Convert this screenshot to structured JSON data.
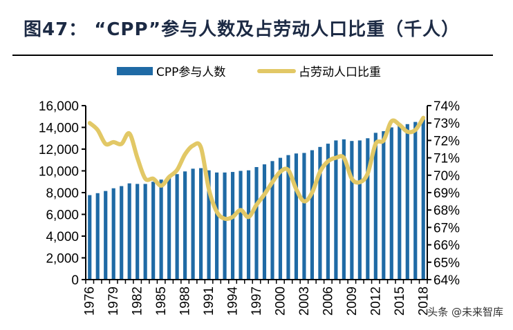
{
  "title": "图47：   “CPP”参与人数及占劳动人口比重（千人）",
  "watermark": "头条 @未来智库",
  "chart_data": {
    "type": "bar+line",
    "title": "图47：   “CPP”参与人数及占劳动人口比重（千人）",
    "legend_position": "top-center",
    "x": [
      1976,
      1977,
      1978,
      1979,
      1980,
      1981,
      1982,
      1983,
      1984,
      1985,
      1986,
      1987,
      1988,
      1989,
      1990,
      1991,
      1992,
      1993,
      1994,
      1995,
      1996,
      1997,
      1998,
      1999,
      2000,
      2001,
      2002,
      2003,
      2004,
      2005,
      2006,
      2007,
      2008,
      2009,
      2010,
      2011,
      2012,
      2013,
      2014,
      2015,
      2016,
      2017,
      2018
    ],
    "x_tick_labels": [
      "1976",
      "1979",
      "1982",
      "1985",
      "1988",
      "1991",
      "1994",
      "1997",
      "2000",
      "2003",
      "2006",
      "2009",
      "2012",
      "2015",
      "2018"
    ],
    "y_left": {
      "range": [
        0,
        16000
      ],
      "ticks": [
        "0",
        "2,000",
        "4,000",
        "6,000",
        "8,000",
        "10,000",
        "12,000",
        "14,000",
        "16,000"
      ]
    },
    "y_right": {
      "range": [
        64,
        74
      ],
      "ticks": [
        "64%",
        "65%",
        "66%",
        "67%",
        "68%",
        "69%",
        "70%",
        "71%",
        "72%",
        "73%",
        "74%"
      ]
    },
    "grid": false,
    "series": [
      {
        "name": "CPP参与人数",
        "type": "bar",
        "axis": "left",
        "color": "#1f6aa5",
        "values": [
          7770,
          7950,
          8150,
          8400,
          8600,
          8850,
          8800,
          8800,
          9000,
          9200,
          9400,
          9700,
          9950,
          10200,
          10250,
          10050,
          9850,
          9850,
          9900,
          10000,
          10050,
          10350,
          10600,
          10900,
          11200,
          11450,
          11600,
          11650,
          11900,
          12200,
          12500,
          12800,
          12900,
          12750,
          12800,
          13000,
          13500,
          13650,
          14000,
          14200,
          14300,
          14500,
          14750
        ]
      },
      {
        "name": "占劳动人口比重",
        "type": "line",
        "axis": "right",
        "color": "#e2c866",
        "values": [
          73.0,
          72.6,
          71.8,
          71.9,
          71.8,
          72.4,
          71.0,
          69.8,
          69.8,
          69.4,
          69.9,
          70.3,
          71.2,
          71.7,
          71.6,
          69.2,
          67.9,
          67.5,
          67.6,
          68.0,
          67.6,
          68.3,
          68.9,
          69.6,
          70.2,
          70.3,
          69.2,
          68.5,
          69.0,
          70.2,
          70.8,
          71.0,
          71.0,
          69.8,
          69.6,
          70.1,
          71.8,
          72.0,
          73.1,
          72.9,
          72.5,
          72.6,
          73.3
        ]
      }
    ]
  }
}
